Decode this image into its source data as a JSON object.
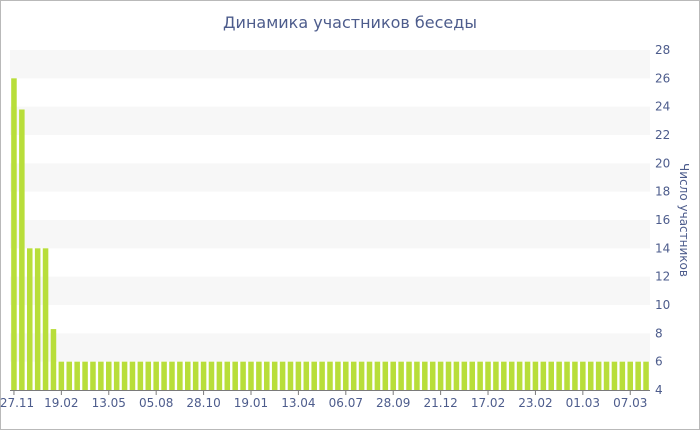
{
  "chart_data": {
    "type": "bar",
    "title": "Динамика участников беседы",
    "xlabel": "",
    "ylabel": "Число участников",
    "ylim": [
      4,
      28
    ],
    "y_ticks": [
      4,
      6,
      8,
      10,
      12,
      14,
      16,
      18,
      20,
      22,
      24,
      26,
      28
    ],
    "x_tick_labels": [
      "27.11",
      "19.02",
      "13.05",
      "05.08",
      "28.10",
      "19.01",
      "13.04",
      "06.07",
      "28.09",
      "21.12",
      "17.02",
      "23.02",
      "01.03",
      "07.03"
    ],
    "x_tick_positions": [
      0,
      6,
      12,
      18,
      24,
      30,
      36,
      42,
      48,
      54,
      60,
      66,
      72,
      78
    ],
    "grid": "horizontal-bands",
    "colors": {
      "bar": "#b8de3a",
      "band": "#f7f7f7",
      "text": "#4d5c8c",
      "axis": "#7a7a7a"
    },
    "values": [
      26,
      23.8,
      14,
      14,
      14,
      8.3,
      6,
      6,
      6,
      6,
      6,
      6,
      6,
      6,
      6,
      6,
      6,
      6,
      6,
      6,
      6,
      6,
      6,
      6,
      6,
      6,
      6,
      6,
      6,
      6,
      6,
      6,
      6,
      6,
      6,
      6,
      6,
      6,
      6,
      6,
      6,
      6,
      6,
      6,
      6,
      6,
      6,
      6,
      6,
      6,
      6,
      6,
      6,
      6,
      6,
      6,
      6,
      6,
      6,
      6,
      6,
      6,
      6,
      6,
      6,
      6,
      6,
      6,
      6,
      6,
      6,
      6,
      6,
      6,
      6,
      6,
      6,
      6,
      6,
      6,
      6
    ]
  }
}
